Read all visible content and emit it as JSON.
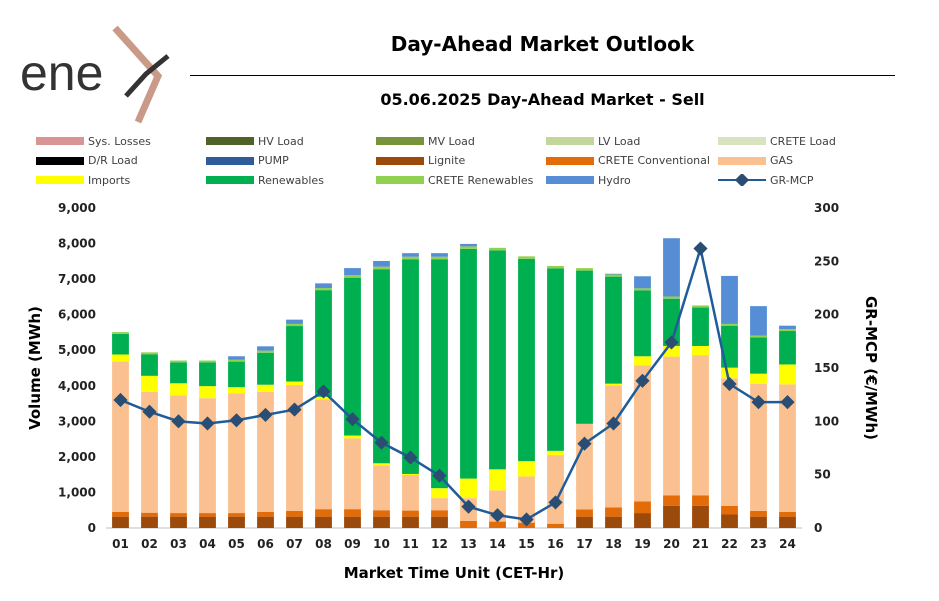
{
  "logo": {
    "text": "ene"
  },
  "header": {
    "title": "Day-Ahead Market Outlook",
    "subtitle": "05.06.2025  Day-Ahead Market - Sell"
  },
  "chart_data": {
    "type": "bar",
    "stacked": true,
    "categories": [
      "01",
      "02",
      "03",
      "04",
      "05",
      "06",
      "07",
      "08",
      "09",
      "10",
      "11",
      "12",
      "13",
      "14",
      "15",
      "16",
      "17",
      "18",
      "19",
      "20",
      "21",
      "22",
      "23",
      "24"
    ],
    "xlabel": "Market Time Unit (CET-Hr)",
    "ylabel": "Volume (MWh)",
    "y2label": "GR-MCP (€/MWh)",
    "ylim": [
      0,
      9000
    ],
    "y2lim": [
      0,
      300
    ],
    "yticks": [
      "0",
      "1,000",
      "2,000",
      "3,000",
      "4,000",
      "5,000",
      "6,000",
      "7,000",
      "8,000",
      "9,000"
    ],
    "y2ticks": [
      "0",
      "50",
      "100",
      "150",
      "200",
      "250",
      "300"
    ],
    "legend_position": "top",
    "legend": [
      {
        "name": "Sys. Losses",
        "color": "#d99594"
      },
      {
        "name": "HV Load",
        "color": "#4f6228"
      },
      {
        "name": "MV Load",
        "color": "#77933c"
      },
      {
        "name": "LV Load",
        "color": "#c3d69b"
      },
      {
        "name": "CRETE Load",
        "color": "#d7e4bd"
      },
      {
        "name": "D/R Load",
        "color": "#000000"
      },
      {
        "name": "PUMP",
        "color": "#2e5b9a"
      },
      {
        "name": "Lignite",
        "color": "#9c4a0c"
      },
      {
        "name": "CRETE Conventional",
        "color": "#e36c09"
      },
      {
        "name": "GAS",
        "color": "#fac090"
      },
      {
        "name": "Imports",
        "color": "#ffff00"
      },
      {
        "name": "Renewables",
        "color": "#00b050"
      },
      {
        "name": "CRETE Renewables",
        "color": "#92d050"
      },
      {
        "name": "Hydro",
        "color": "#558ed5"
      },
      {
        "name": "GR-MCP",
        "color": "#1f5c99"
      }
    ],
    "series": [
      {
        "name": "Lignite",
        "color": "#9c4a0c",
        "values": [
          320,
          320,
          320,
          320,
          320,
          320,
          320,
          320,
          320,
          320,
          320,
          320,
          0,
          0,
          0,
          0,
          320,
          320,
          420,
          620,
          620,
          380,
          320,
          320
        ]
      },
      {
        "name": "CRETE Conventional",
        "color": "#e36c09",
        "values": [
          130,
          110,
          100,
          100,
          100,
          130,
          160,
          210,
          210,
          180,
          170,
          180,
          200,
          180,
          150,
          120,
          200,
          260,
          330,
          300,
          300,
          240,
          160,
          130
        ]
      },
      {
        "name": "GAS",
        "color": "#fac090",
        "values": [
          4230,
          3400,
          3310,
          3230,
          3370,
          3380,
          3540,
          3090,
          1990,
          1260,
          1000,
          340,
          640,
          880,
          1300,
          1930,
          2410,
          3430,
          3820,
          3900,
          3940,
          3590,
          3570,
          3590
        ]
      },
      {
        "name": "Imports",
        "color": "#ffff00",
        "values": [
          200,
          450,
          340,
          340,
          170,
          200,
          100,
          70,
          80,
          60,
          30,
          280,
          550,
          590,
          430,
          120,
          0,
          50,
          260,
          300,
          260,
          300,
          290,
          560
        ]
      },
      {
        "name": "Renewables",
        "color": "#00b050",
        "values": [
          580,
          600,
          590,
          670,
          720,
          900,
          1560,
          3000,
          4440,
          5460,
          6040,
          6440,
          6460,
          6160,
          5690,
          5130,
          4310,
          3010,
          1850,
          1330,
          1080,
          1180,
          1020,
          940
        ]
      },
      {
        "name": "CRETE Renewables",
        "color": "#92d050",
        "values": [
          50,
          60,
          50,
          50,
          50,
          60,
          60,
          60,
          70,
          70,
          70,
          70,
          70,
          70,
          70,
          70,
          70,
          60,
          60,
          60,
          60,
          50,
          50,
          50
        ]
      },
      {
        "name": "Hydro",
        "color": "#558ed5",
        "values": [
          0,
          0,
          0,
          0,
          100,
          120,
          120,
          130,
          200,
          160,
          100,
          100,
          70,
          0,
          0,
          0,
          0,
          20,
          340,
          1640,
          0,
          1350,
          830,
          100
        ]
      }
    ],
    "line": {
      "name": "GR-MCP",
      "color": "#1f5c99",
      "values": [
        120,
        109,
        100,
        98,
        101,
        106,
        111,
        128,
        102,
        80,
        66,
        49,
        20,
        12,
        8,
        24,
        79,
        98,
        138,
        174,
        262,
        135,
        118,
        118
      ]
    }
  }
}
